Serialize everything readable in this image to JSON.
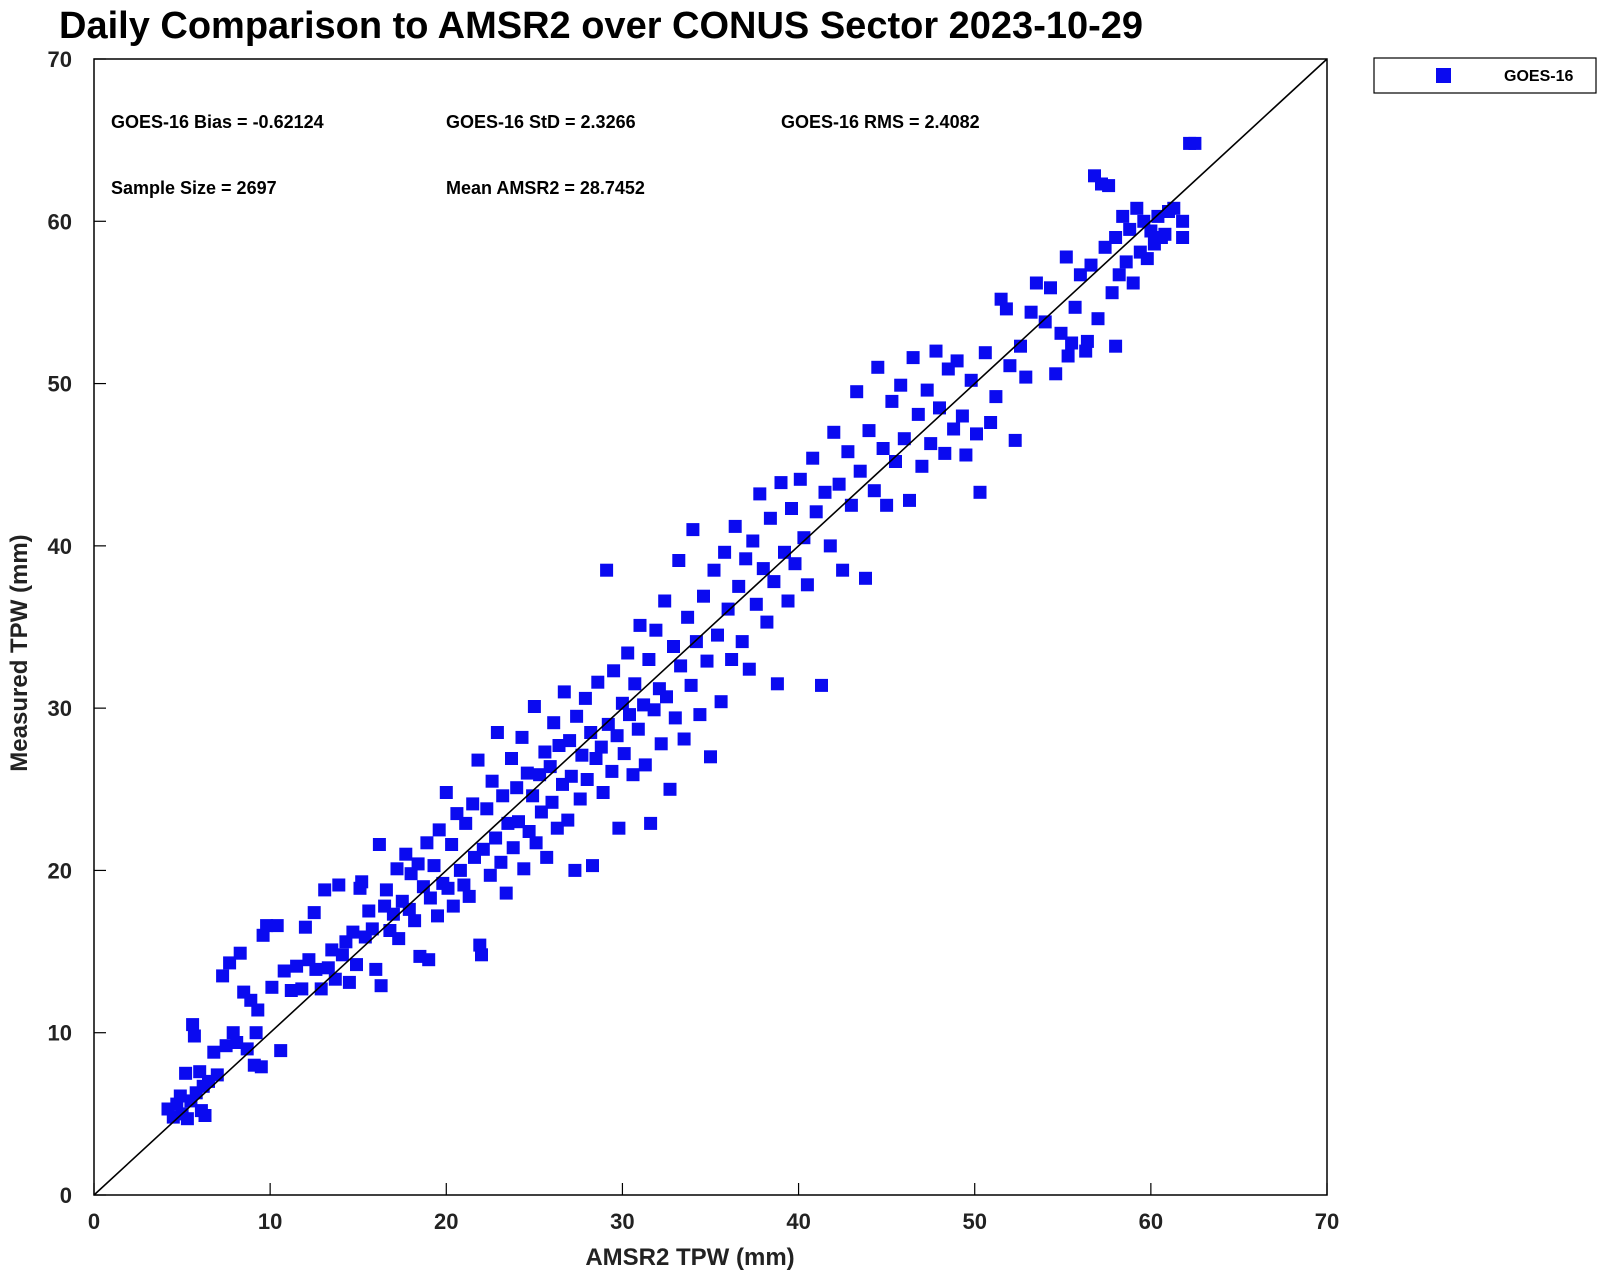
{
  "chart_data": {
    "type": "scatter",
    "title": "Daily Comparison to AMSR2 over CONUS Sector 2023-10-29",
    "xlabel": "AMSR2 TPW (mm)",
    "ylabel": "Measured TPW (mm)",
    "xlim": [
      0,
      70
    ],
    "ylim": [
      0,
      70
    ],
    "xticks": [
      0,
      10,
      20,
      30,
      40,
      50,
      60,
      70
    ],
    "yticks": [
      0,
      10,
      20,
      30,
      40,
      50,
      60,
      70
    ],
    "grid": false,
    "legend_position": "outside-top-right",
    "reference_line": {
      "name": "1:1 line",
      "from": [
        0,
        0
      ],
      "to": [
        70,
        70
      ],
      "color": "#000000"
    },
    "stats": {
      "bias": "GOES-16 Bias = -0.62124",
      "std": "GOES-16 StD = 2.3266",
      "rms": "GOES-16 RMS = 2.4082",
      "sample_size": "Sample Size = 2697",
      "mean": "Mean AMSR2 = 28.7452"
    },
    "series": [
      {
        "name": "GOES-16",
        "color": "#0a0af0",
        "marker": "square",
        "points": [
          [
            4.2,
            5.3
          ],
          [
            4.5,
            4.8
          ],
          [
            4.7,
            5.6
          ],
          [
            4.9,
            6.1
          ],
          [
            5.0,
            5.0
          ],
          [
            5.2,
            7.5
          ],
          [
            5.3,
            4.7
          ],
          [
            5.5,
            5.8
          ],
          [
            5.6,
            10.5
          ],
          [
            5.7,
            9.8
          ],
          [
            5.8,
            6.3
          ],
          [
            6.0,
            7.6
          ],
          [
            6.1,
            5.2
          ],
          [
            6.2,
            6.7
          ],
          [
            6.3,
            4.9
          ],
          [
            6.5,
            7.0
          ],
          [
            6.8,
            8.8
          ],
          [
            7.0,
            7.4
          ],
          [
            7.3,
            13.5
          ],
          [
            7.5,
            9.2
          ],
          [
            7.7,
            14.3
          ],
          [
            7.9,
            10.0
          ],
          [
            8.1,
            9.4
          ],
          [
            8.3,
            14.9
          ],
          [
            8.5,
            12.5
          ],
          [
            8.7,
            9.0
          ],
          [
            8.9,
            12.0
          ],
          [
            9.1,
            8.0
          ],
          [
            9.2,
            10.0
          ],
          [
            9.3,
            11.4
          ],
          [
            9.5,
            7.9
          ],
          [
            9.6,
            16.0
          ],
          [
            9.8,
            16.6
          ],
          [
            10.1,
            12.8
          ],
          [
            10.4,
            16.6
          ],
          [
            10.6,
            8.9
          ],
          [
            10.8,
            13.8
          ],
          [
            11.2,
            12.6
          ],
          [
            11.5,
            14.1
          ],
          [
            11.8,
            12.7
          ],
          [
            12.0,
            16.5
          ],
          [
            12.2,
            14.5
          ],
          [
            12.5,
            17.4
          ],
          [
            12.6,
            13.9
          ],
          [
            12.9,
            12.7
          ],
          [
            13.1,
            18.8
          ],
          [
            13.3,
            14.0
          ],
          [
            13.5,
            15.1
          ],
          [
            13.7,
            13.3
          ],
          [
            13.9,
            19.1
          ],
          [
            14.1,
            14.8
          ],
          [
            14.3,
            15.6
          ],
          [
            14.5,
            13.1
          ],
          [
            14.7,
            16.2
          ],
          [
            14.9,
            14.2
          ],
          [
            15.1,
            18.9
          ],
          [
            15.2,
            19.3
          ],
          [
            15.4,
            15.9
          ],
          [
            15.6,
            17.5
          ],
          [
            15.8,
            16.4
          ],
          [
            16.0,
            13.9
          ],
          [
            16.2,
            21.6
          ],
          [
            16.3,
            12.9
          ],
          [
            16.5,
            17.8
          ],
          [
            16.6,
            18.8
          ],
          [
            16.8,
            16.3
          ],
          [
            17.0,
            17.3
          ],
          [
            17.2,
            20.1
          ],
          [
            17.3,
            15.8
          ],
          [
            17.5,
            18.1
          ],
          [
            17.7,
            21.0
          ],
          [
            17.9,
            17.6
          ],
          [
            18.0,
            19.8
          ],
          [
            18.2,
            16.9
          ],
          [
            18.4,
            20.4
          ],
          [
            18.5,
            14.7
          ],
          [
            18.7,
            19.0
          ],
          [
            18.9,
            21.7
          ],
          [
            19.0,
            14.5
          ],
          [
            19.1,
            18.3
          ],
          [
            19.3,
            20.3
          ],
          [
            19.5,
            17.2
          ],
          [
            19.6,
            22.5
          ],
          [
            19.8,
            19.2
          ],
          [
            20.0,
            24.8
          ],
          [
            20.1,
            18.9
          ],
          [
            20.3,
            21.6
          ],
          [
            20.4,
            17.8
          ],
          [
            20.6,
            23.5
          ],
          [
            20.8,
            20.0
          ],
          [
            21.0,
            19.1
          ],
          [
            21.1,
            22.9
          ],
          [
            21.3,
            18.4
          ],
          [
            21.5,
            24.1
          ],
          [
            21.6,
            20.8
          ],
          [
            21.8,
            26.8
          ],
          [
            21.9,
            15.4
          ],
          [
            22.0,
            14.8
          ],
          [
            22.1,
            21.3
          ],
          [
            22.3,
            23.8
          ],
          [
            22.5,
            19.7
          ],
          [
            22.6,
            25.5
          ],
          [
            22.8,
            22.0
          ],
          [
            22.9,
            28.5
          ],
          [
            23.1,
            20.5
          ],
          [
            23.2,
            24.6
          ],
          [
            23.4,
            18.6
          ],
          [
            23.5,
            22.9
          ],
          [
            23.7,
            26.9
          ],
          [
            23.8,
            21.4
          ],
          [
            24.0,
            25.1
          ],
          [
            24.1,
            23.0
          ],
          [
            24.3,
            28.2
          ],
          [
            24.4,
            20.1
          ],
          [
            24.6,
            26.0
          ],
          [
            24.7,
            22.4
          ],
          [
            24.9,
            24.6
          ],
          [
            25.0,
            30.1
          ],
          [
            25.1,
            21.7
          ],
          [
            25.3,
            25.9
          ],
          [
            25.4,
            23.6
          ],
          [
            25.6,
            27.3
          ],
          [
            25.7,
            20.8
          ],
          [
            25.9,
            26.4
          ],
          [
            26.0,
            24.2
          ],
          [
            26.1,
            29.1
          ],
          [
            26.3,
            22.6
          ],
          [
            26.4,
            27.7
          ],
          [
            26.6,
            25.3
          ],
          [
            26.7,
            31.0
          ],
          [
            26.9,
            23.1
          ],
          [
            27.0,
            28.0
          ],
          [
            27.1,
            25.8
          ],
          [
            27.3,
            20.0
          ],
          [
            27.4,
            29.5
          ],
          [
            27.6,
            24.4
          ],
          [
            27.7,
            27.1
          ],
          [
            27.9,
            30.6
          ],
          [
            28.0,
            25.6
          ],
          [
            28.2,
            28.5
          ],
          [
            28.3,
            20.3
          ],
          [
            28.5,
            26.9
          ],
          [
            28.6,
            31.6
          ],
          [
            28.8,
            27.6
          ],
          [
            28.9,
            24.8
          ],
          [
            29.1,
            38.5
          ],
          [
            29.2,
            29.0
          ],
          [
            29.4,
            26.1
          ],
          [
            29.5,
            32.3
          ],
          [
            29.7,
            28.3
          ],
          [
            29.8,
            22.6
          ],
          [
            30.0,
            30.3
          ],
          [
            30.1,
            27.2
          ],
          [
            30.3,
            33.4
          ],
          [
            30.4,
            29.6
          ],
          [
            30.6,
            25.9
          ],
          [
            30.7,
            31.5
          ],
          [
            30.9,
            28.7
          ],
          [
            31.0,
            35.1
          ],
          [
            31.2,
            30.2
          ],
          [
            31.3,
            26.5
          ],
          [
            31.5,
            33.0
          ],
          [
            31.6,
            22.9
          ],
          [
            31.8,
            29.9
          ],
          [
            31.9,
            34.8
          ],
          [
            32.1,
            31.2
          ],
          [
            32.2,
            27.8
          ],
          [
            32.4,
            36.6
          ],
          [
            32.5,
            30.7
          ],
          [
            32.7,
            25.0
          ],
          [
            32.9,
            33.8
          ],
          [
            33.0,
            29.4
          ],
          [
            33.2,
            39.1
          ],
          [
            33.3,
            32.6
          ],
          [
            33.5,
            28.1
          ],
          [
            33.7,
            35.6
          ],
          [
            33.9,
            31.4
          ],
          [
            34.0,
            41.0
          ],
          [
            34.2,
            34.1
          ],
          [
            34.4,
            29.6
          ],
          [
            34.6,
            36.9
          ],
          [
            34.8,
            32.9
          ],
          [
            35.0,
            27.0
          ],
          [
            35.2,
            38.5
          ],
          [
            35.4,
            34.5
          ],
          [
            35.6,
            30.4
          ],
          [
            35.8,
            39.6
          ],
          [
            36.0,
            36.1
          ],
          [
            36.2,
            33.0
          ],
          [
            36.4,
            41.2
          ],
          [
            36.6,
            37.5
          ],
          [
            36.8,
            34.1
          ],
          [
            37.0,
            39.2
          ],
          [
            37.2,
            32.4
          ],
          [
            37.4,
            40.3
          ],
          [
            37.6,
            36.4
          ],
          [
            37.8,
            43.2
          ],
          [
            38.0,
            38.6
          ],
          [
            38.2,
            35.3
          ],
          [
            38.4,
            41.7
          ],
          [
            38.6,
            37.8
          ],
          [
            38.8,
            31.5
          ],
          [
            39.0,
            43.9
          ],
          [
            39.2,
            39.6
          ],
          [
            39.4,
            36.6
          ],
          [
            39.6,
            42.3
          ],
          [
            39.8,
            38.9
          ],
          [
            40.1,
            44.1
          ],
          [
            40.3,
            40.5
          ],
          [
            40.5,
            37.6
          ],
          [
            40.8,
            45.4
          ],
          [
            41.0,
            42.1
          ],
          [
            41.3,
            31.4
          ],
          [
            41.5,
            43.3
          ],
          [
            41.8,
            40.0
          ],
          [
            42.0,
            47.0
          ],
          [
            42.3,
            43.8
          ],
          [
            42.5,
            38.5
          ],
          [
            42.8,
            45.8
          ],
          [
            43.0,
            42.5
          ],
          [
            43.3,
            49.5
          ],
          [
            43.5,
            44.6
          ],
          [
            43.8,
            38.0
          ],
          [
            44.0,
            47.1
          ],
          [
            44.3,
            43.4
          ],
          [
            44.5,
            51.0
          ],
          [
            44.8,
            46.0
          ],
          [
            45.0,
            42.5
          ],
          [
            45.3,
            48.9
          ],
          [
            45.5,
            45.2
          ],
          [
            45.8,
            49.9
          ],
          [
            46.0,
            46.6
          ],
          [
            46.3,
            42.8
          ],
          [
            46.5,
            51.6
          ],
          [
            46.8,
            48.1
          ],
          [
            47.0,
            44.9
          ],
          [
            47.3,
            49.6
          ],
          [
            47.5,
            46.3
          ],
          [
            47.8,
            52.0
          ],
          [
            48.0,
            48.5
          ],
          [
            48.3,
            45.7
          ],
          [
            48.5,
            50.9
          ],
          [
            48.8,
            47.2
          ],
          [
            49.0,
            51.4
          ],
          [
            49.3,
            48.0
          ],
          [
            49.5,
            45.6
          ],
          [
            49.8,
            50.2
          ],
          [
            50.1,
            46.9
          ],
          [
            50.3,
            43.3
          ],
          [
            50.6,
            51.9
          ],
          [
            50.9,
            47.6
          ],
          [
            51.2,
            49.2
          ],
          [
            51.5,
            55.2
          ],
          [
            51.8,
            54.6
          ],
          [
            52.0,
            51.1
          ],
          [
            52.3,
            46.5
          ],
          [
            52.6,
            52.3
          ],
          [
            52.9,
            50.4
          ],
          [
            53.2,
            54.4
          ],
          [
            53.5,
            56.2
          ],
          [
            54.0,
            53.8
          ],
          [
            54.3,
            55.9
          ],
          [
            54.6,
            50.6
          ],
          [
            54.9,
            53.1
          ],
          [
            55.2,
            57.8
          ],
          [
            55.5,
            52.5
          ],
          [
            55.7,
            54.7
          ],
          [
            56.0,
            56.7
          ],
          [
            56.3,
            52.0
          ],
          [
            56.6,
            57.3
          ],
          [
            56.8,
            62.8
          ],
          [
            57.0,
            54.0
          ],
          [
            57.2,
            62.3
          ],
          [
            57.4,
            58.4
          ],
          [
            57.6,
            62.2
          ],
          [
            57.8,
            55.6
          ],
          [
            58.0,
            59.0
          ],
          [
            58.2,
            56.7
          ],
          [
            58.4,
            60.3
          ],
          [
            58.6,
            57.5
          ],
          [
            58.8,
            59.5
          ],
          [
            59.0,
            56.2
          ],
          [
            59.2,
            60.8
          ],
          [
            59.4,
            58.1
          ],
          [
            59.6,
            60.0
          ],
          [
            59.8,
            57.7
          ],
          [
            60.0,
            59.4
          ],
          [
            60.2,
            58.6
          ],
          [
            60.4,
            60.3
          ],
          [
            60.6,
            59.0
          ],
          [
            60.8,
            59.2
          ],
          [
            61.0,
            60.6
          ],
          [
            61.3,
            60.8
          ],
          [
            61.8,
            60.0
          ],
          [
            61.8,
            59.0
          ],
          [
            62.2,
            64.8
          ],
          [
            62.5,
            64.8
          ],
          [
            56.4,
            52.6
          ],
          [
            58.0,
            52.3
          ],
          [
            55.3,
            51.7
          ]
        ]
      }
    ]
  }
}
